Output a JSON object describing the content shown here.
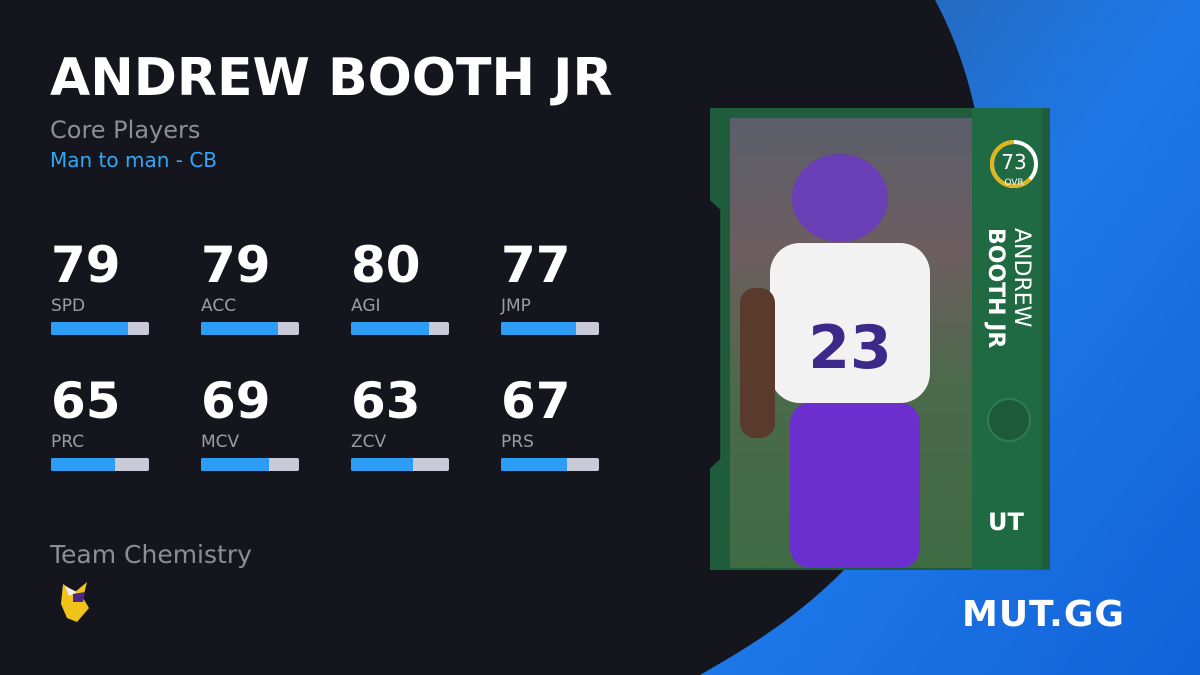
{
  "player": {
    "name": "ANDREW BOOTH JR",
    "program": "Core Players",
    "archetype": "Man to man - CB"
  },
  "stats": [
    {
      "label": "SPD",
      "value": 79
    },
    {
      "label": "ACC",
      "value": 79
    },
    {
      "label": "AGI",
      "value": 80
    },
    {
      "label": "JMP",
      "value": 77
    },
    {
      "label": "PRC",
      "value": 65
    },
    {
      "label": "MCV",
      "value": 69
    },
    {
      "label": "ZCV",
      "value": 63
    },
    {
      "label": "PRS",
      "value": 67
    }
  ],
  "chemistry": {
    "title": "Team Chemistry",
    "team_icon": "vikings-logo-icon"
  },
  "card": {
    "ovr": "73",
    "ovr_label": "OVR",
    "first_name": "ANDREW",
    "last_name": "BOOTH JR",
    "badge": "UT",
    "team_icon": "vikings-logo-icon"
  },
  "brand": "MUT.GG",
  "colors": {
    "accent": "#2c9cf4",
    "card_green": "#206a43",
    "ovr_ring": "#e3b51b",
    "background": "#15161d",
    "blue_panel": "#1b74e0"
  }
}
